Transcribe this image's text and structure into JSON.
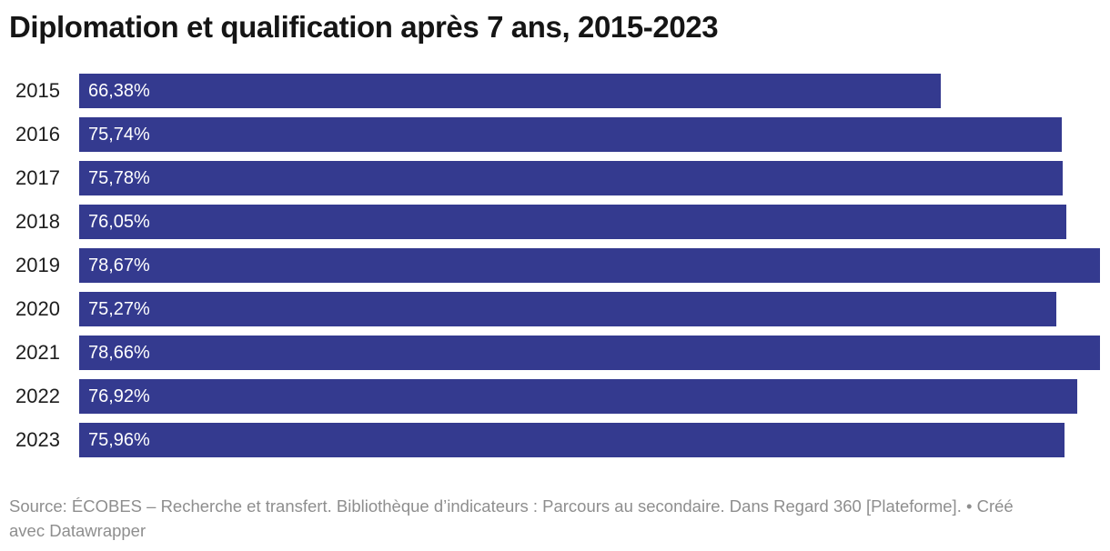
{
  "title": "Diplomation et qualification après 7 ans, 2015-2023",
  "footer": {
    "source_text": "Source: ÉCOBES – Recherche et transfert. Bibliothèque d’indicateurs : Parcours au secondaire. Dans Regard 360 [Plateforme].",
    "separator": "•",
    "attribution": "Créé avec Datawrapper"
  },
  "colors": {
    "bar": "#343A8F",
    "title": "#151515",
    "year_label": "#1d1d1d",
    "value_label": "#ffffff",
    "footer_text": "#8e8e8e",
    "background": "#ffffff"
  },
  "chart_data": {
    "type": "bar",
    "orientation": "horizontal",
    "title": "Diplomation et qualification après 7 ans, 2015-2023",
    "categories": [
      "2015",
      "2016",
      "2017",
      "2018",
      "2019",
      "2020",
      "2021",
      "2022",
      "2023"
    ],
    "values": [
      66.38,
      75.74,
      75.78,
      76.05,
      78.67,
      75.27,
      78.66,
      76.92,
      75.96
    ],
    "value_labels": [
      "66,38%",
      "75,74%",
      "75,78%",
      "76,05%",
      "78,67%",
      "75,27%",
      "78,66%",
      "76,92%",
      "75,96%"
    ],
    "xlim": [
      0,
      78.67
    ],
    "grid": false,
    "legend": false,
    "value_label_position": "inside-start"
  }
}
